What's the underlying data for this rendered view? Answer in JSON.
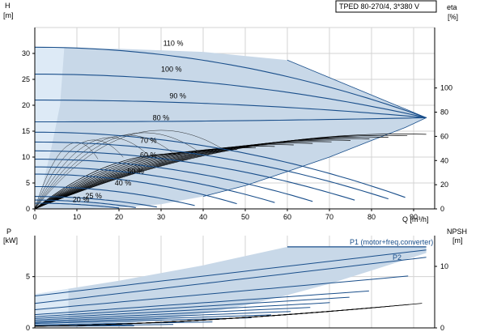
{
  "colors": {
    "curve": "#1a4f8b",
    "region": "#c8d8e8",
    "region_light": "#ddeaf6",
    "eta_curve": "#000000",
    "grid": "#d3d3d3"
  },
  "chart_data": [
    {
      "type": "line",
      "title": "TPED 80-270/4, 3*380 V",
      "ylabel": "H",
      "yunit": "[m]",
      "xlabel": "Q [m³/h]",
      "y2label": "eta",
      "y2unit": "[%]",
      "xlim": [
        0,
        95
      ],
      "ylim": [
        0,
        35
      ],
      "y2lim": [
        0,
        150
      ],
      "xticks": [
        "0",
        "10",
        "20",
        "30",
        "40",
        "50",
        "60",
        "70",
        "80",
        "90"
      ],
      "yticks": [
        "0",
        "5",
        "10",
        "15",
        "20",
        "25",
        "30"
      ],
      "y2ticks": [
        "0",
        "20",
        "40",
        "60",
        "80",
        "100"
      ],
      "grid": true,
      "region_outline": [
        [
          0,
          31.2
        ],
        [
          3,
          31.15
        ],
        [
          8,
          31.1
        ],
        [
          20,
          30.9
        ],
        [
          40,
          30.3
        ],
        [
          60,
          28.7
        ],
        [
          93,
          17.6
        ],
        [
          88,
          15.7
        ],
        [
          80,
          13.2
        ],
        [
          70,
          10.0
        ],
        [
          60,
          7.2
        ],
        [
          50,
          4.5
        ],
        [
          40,
          2.4
        ],
        [
          30,
          0.9
        ],
        [
          20,
          0.2
        ],
        [
          10,
          0
        ],
        [
          0,
          0
        ]
      ],
      "speed_labels": [
        "110 %",
        "100 %",
        "90 %",
        "80 %",
        "70 %",
        "60 %",
        "50 %",
        "40 %",
        "25 %",
        "20 %"
      ],
      "series": [
        {
          "speed": 110,
          "head0": 31.2,
          "qmax": 93
        },
        {
          "speed": 100,
          "head0": 26.0,
          "qmax": 93
        },
        {
          "speed": 90,
          "head0": 21.0,
          "qmax": 93
        },
        {
          "speed": 80,
          "head0": 16.8,
          "qmax": 93
        },
        {
          "speed": 75,
          "head0": 14.8,
          "qmax": 88
        },
        {
          "speed": 70,
          "head0": 12.9,
          "qmax": 84
        },
        {
          "speed": 65,
          "head0": 11.2,
          "qmax": 76
        },
        {
          "speed": 60,
          "head0": 9.6,
          "qmax": 66
        },
        {
          "speed": 55,
          "head0": 8.1,
          "qmax": 57
        },
        {
          "speed": 50,
          "head0": 6.7,
          "qmax": 48
        },
        {
          "speed": 40,
          "head0": 4.3,
          "qmax": 38
        },
        {
          "speed": 30,
          "head0": 2.4,
          "qmax": 29
        },
        {
          "speed": 25,
          "head0": 1.7,
          "qmax": 24
        },
        {
          "speed": 20,
          "head0": 1.1,
          "qmax": 20
        }
      ]
    },
    {
      "type": "line",
      "ylabel": "P",
      "yunit": "[kW]",
      "y2label": "NPSH",
      "y2unit": "[m]",
      "xlim": [
        0,
        95
      ],
      "ylim": [
        0,
        9
      ],
      "y2lim": [
        0,
        15
      ],
      "yticks": [
        "0",
        "5"
      ],
      "y2ticks": [
        "0",
        "10"
      ],
      "grid": true,
      "series_labels": [
        "P1 (motor+freq.converter)",
        "P2"
      ],
      "p1_max": 7.9,
      "p2_max": 7.3,
      "npsh_max": 4.0
    }
  ]
}
